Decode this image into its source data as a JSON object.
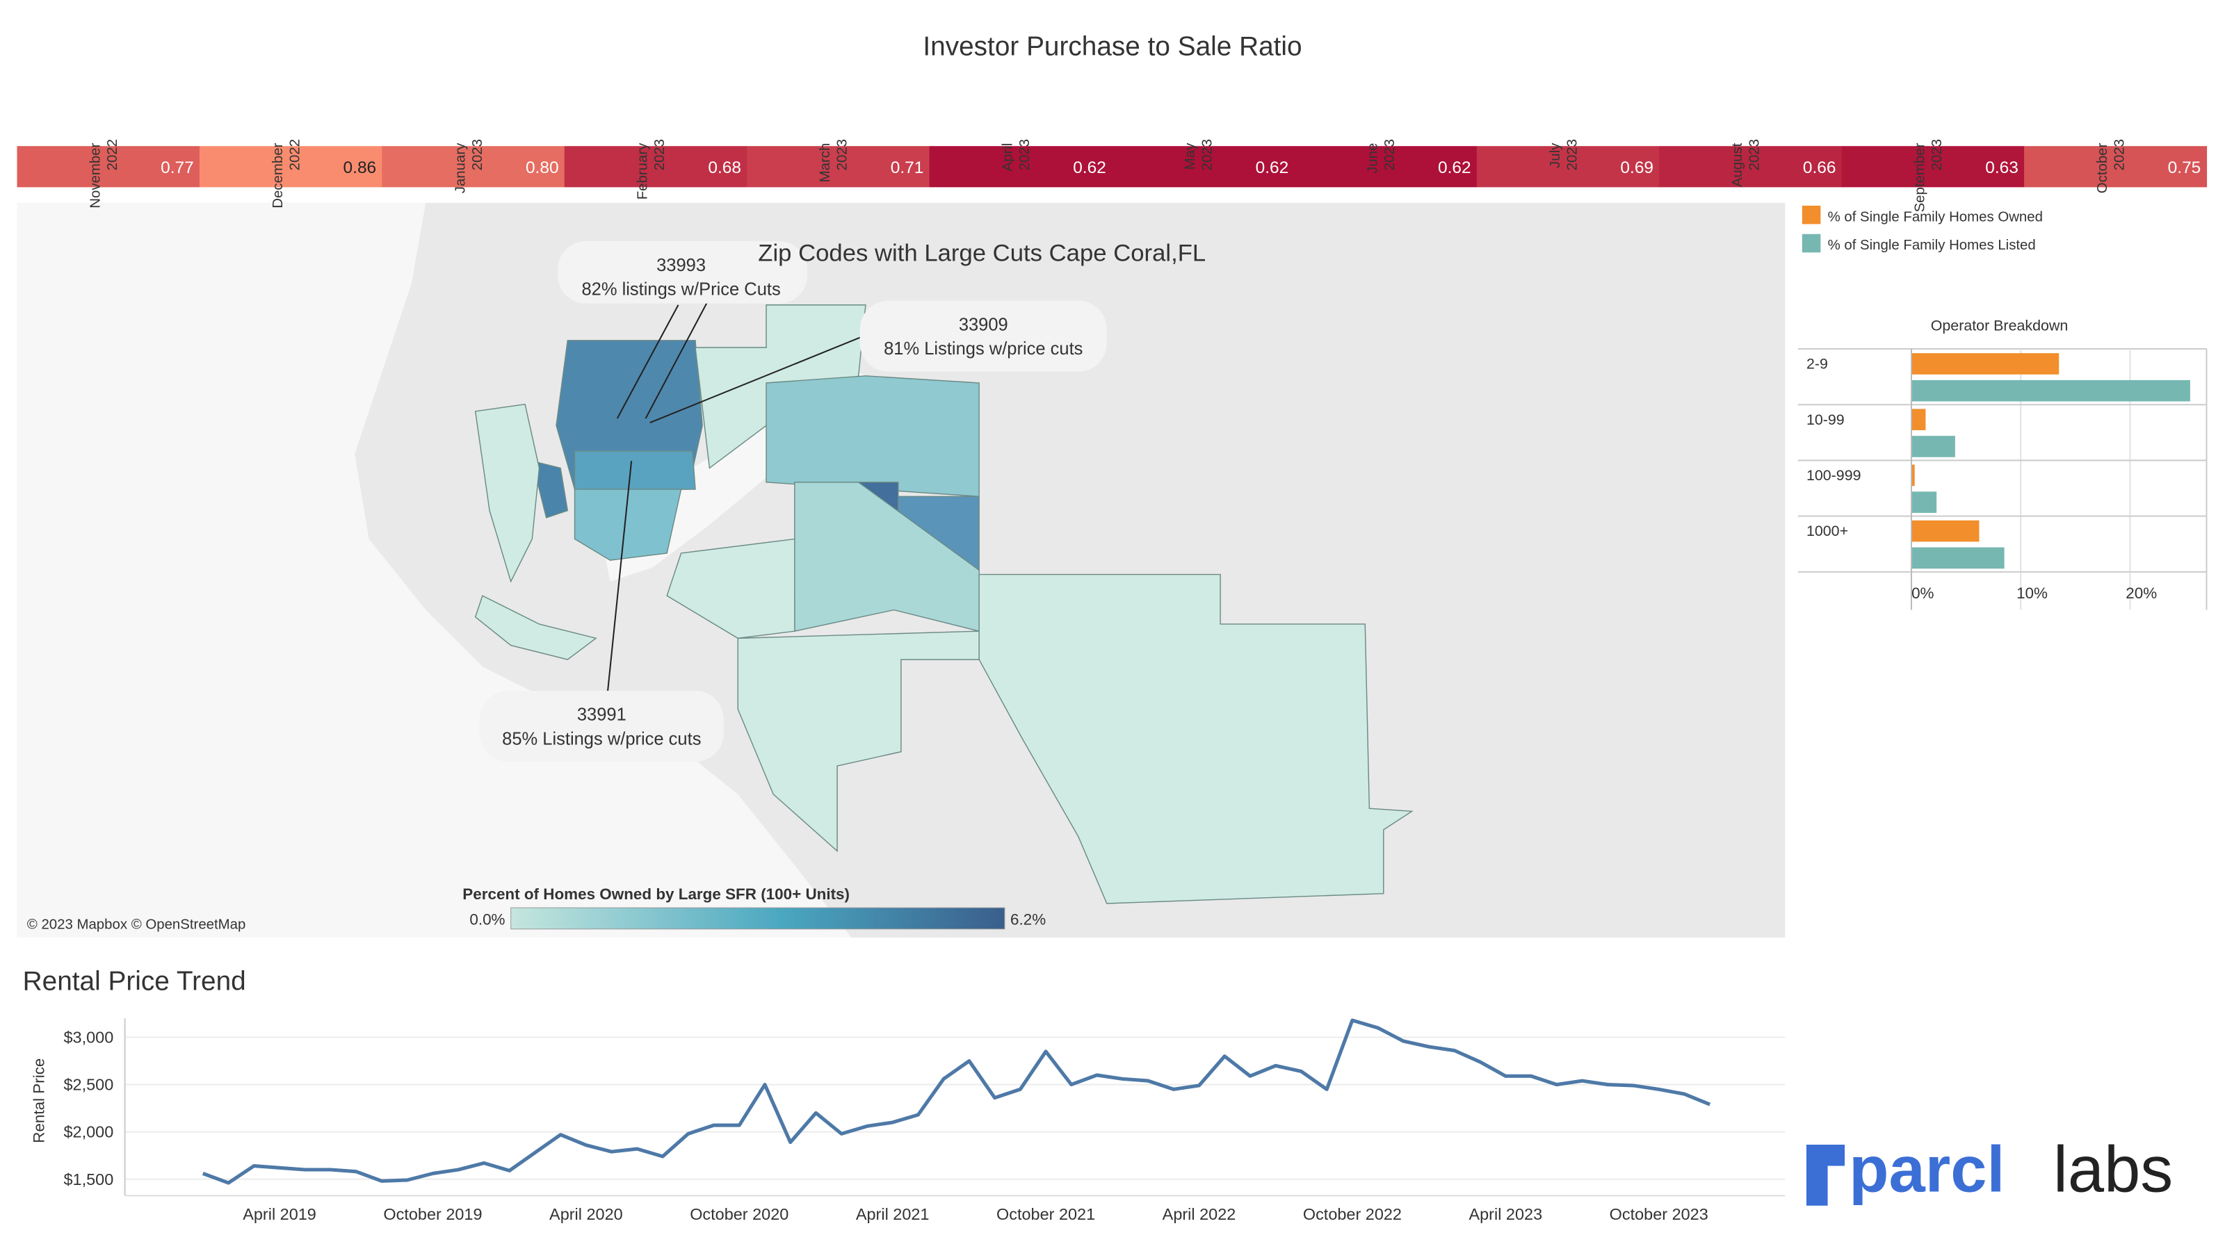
{
  "chart_data": [
    {
      "type": "heatmap",
      "title": "Investor Purchase to Sale Ratio",
      "categories": [
        "November 2022",
        "December 2022",
        "January 2023",
        "February 2023",
        "March 2023",
        "April 2023",
        "May 2023",
        "June 2023",
        "July 2023",
        "August 2023",
        "September 2023",
        "October 2023"
      ],
      "values": [
        0.77,
        0.86,
        0.8,
        0.68,
        0.71,
        0.62,
        0.62,
        0.62,
        0.69,
        0.66,
        0.63,
        0.75
      ],
      "value_labels": [
        "0.77",
        "0.86",
        "0.80",
        "0.68",
        "0.71",
        "0.62",
        "0.62",
        "0.62",
        "0.69",
        "0.66",
        "0.63",
        "0.75"
      ],
      "color_low": "#ad1038",
      "color_high": "#f98c6f"
    },
    {
      "type": "bar",
      "orientation": "horizontal",
      "title": "Operator Breakdown",
      "categories": [
        "2-9",
        "10-99",
        "100-999",
        "1000+"
      ],
      "series": [
        {
          "name": "% of Single Family Homes Owned",
          "color": "#f28e2b",
          "values": [
            13.5,
            1.3,
            0.3,
            6.2
          ]
        },
        {
          "name": "% of Single Family Homes Listed",
          "color": "#76b7b2",
          "values": [
            25.5,
            4.0,
            2.3,
            8.5
          ]
        }
      ],
      "xlim": [
        0,
        27
      ],
      "xticks": [
        {
          "value": 0,
          "label": "0%"
        },
        {
          "value": 10,
          "label": "10%"
        },
        {
          "value": 20,
          "label": "20%"
        }
      ],
      "grid": true
    },
    {
      "type": "line",
      "title": "Rental Price Trend",
      "y_label": "Rental Price",
      "color": "#4e79a7",
      "categories": [
        null,
        null,
        null,
        "April 2019",
        null,
        null,
        null,
        null,
        null,
        "October 2019",
        null,
        null,
        null,
        null,
        null,
        "April 2020",
        null,
        null,
        null,
        null,
        null,
        "October 2020",
        null,
        null,
        null,
        null,
        null,
        "April 2021",
        null,
        null,
        null,
        null,
        null,
        "October 2021",
        null,
        null,
        null,
        null,
        null,
        "April 2022",
        null,
        null,
        null,
        null,
        null,
        "October 2022",
        null,
        null,
        null,
        null,
        null,
        "April 2023",
        null,
        null,
        null,
        null,
        null,
        "October 2023",
        null,
        null
      ],
      "values": [
        1560,
        1460,
        1640,
        1620,
        1600,
        1600,
        1580,
        1480,
        1490,
        1560,
        1600,
        1670,
        1590,
        1780,
        1970,
        1860,
        1790,
        1820,
        1740,
        1980,
        2070,
        2070,
        2500,
        1890,
        2200,
        1980,
        2060,
        2100,
        2180,
        2560,
        2750,
        2360,
        2450,
        2850,
        2500,
        2600,
        2560,
        2540,
        2450,
        2490,
        2800,
        2590,
        2700,
        2640,
        2450,
        3180,
        3100,
        2960,
        2900,
        2860,
        2740,
        2590,
        2590,
        2500,
        2540,
        2500,
        2490,
        2450,
        2400,
        2290
      ],
      "ylim": [
        1400,
        3200
      ],
      "yticks": [
        {
          "value": 1500,
          "label": "$1,500"
        },
        {
          "value": 2000,
          "label": "$2,000"
        },
        {
          "value": 2500,
          "label": "$2,500"
        },
        {
          "value": 3000,
          "label": "$3,000"
        }
      ],
      "grid": true
    }
  ],
  "map": {
    "title": "Zip Codes with Large Cuts Cape Coral,FL",
    "annotations": [
      {
        "zip": "33993",
        "text": "82% listings w/Price Cuts"
      },
      {
        "zip": "33909",
        "text": "81% Listings w/price cuts"
      },
      {
        "zip": "33991",
        "text": "85% Listings w/price cuts"
      }
    ],
    "legend_title": "Percent of Homes Owned by Large SFR (100+ Units)",
    "legend_min": "0.0%",
    "legend_max": "6.2%",
    "attribution": "© 2023 Mapbox © OpenStreetMap"
  },
  "logo": {
    "brand": "parcl",
    "suffix": "labs"
  }
}
